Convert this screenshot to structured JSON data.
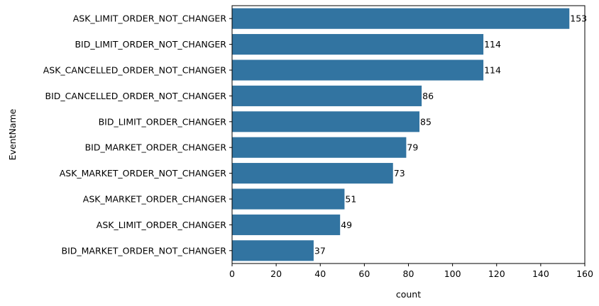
{
  "chart_data": {
    "type": "bar",
    "orientation": "horizontal",
    "categories": [
      "ASK_LIMIT_ORDER_NOT_CHANGER",
      "BID_LIMIT_ORDER_NOT_CHANGER",
      "ASK_CANCELLED_ORDER_NOT_CHANGER",
      "BID_CANCELLED_ORDER_NOT_CHANGER",
      "BID_LIMIT_ORDER_CHANGER",
      "BID_MARKET_ORDER_CHANGER",
      "ASK_MARKET_ORDER_NOT_CHANGER",
      "ASK_MARKET_ORDER_CHANGER",
      "ASK_LIMIT_ORDER_CHANGER",
      "BID_MARKET_ORDER_NOT_CHANGER"
    ],
    "values": [
      153,
      114,
      114,
      86,
      85,
      79,
      73,
      51,
      49,
      37
    ],
    "data_labels": [
      "153",
      "114",
      "114",
      "86",
      "85",
      "79",
      "73",
      "51",
      "49",
      "37"
    ],
    "xlabel": "count",
    "ylabel": "EventName",
    "xlim": [
      0,
      160
    ],
    "xticks": [
      0,
      20,
      40,
      60,
      80,
      100,
      120,
      140,
      160
    ],
    "grid": false,
    "legend": "none",
    "colors": {
      "bar": "#3274a1",
      "axis": "#000000"
    }
  }
}
